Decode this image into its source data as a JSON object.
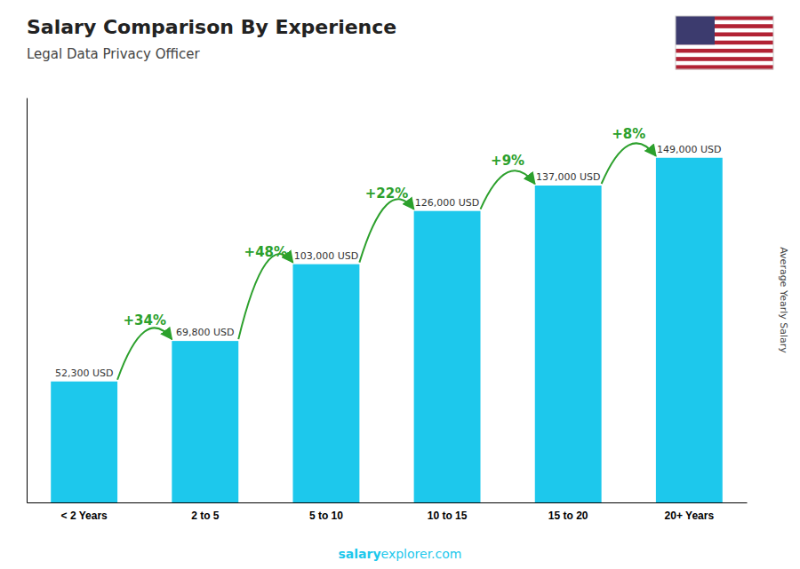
{
  "chart_data": {
    "type": "bar",
    "title": "Salary Comparison By Experience",
    "subtitle": "Legal Data Privacy Officer",
    "categories": [
      "< 2 Years",
      "2 to 5",
      "5 to 10",
      "10 to 15",
      "15 to 20",
      "20+ Years"
    ],
    "values": [
      52300,
      69800,
      103000,
      126000,
      137000,
      149000
    ],
    "value_labels": [
      "52,300 USD",
      "69,800 USD",
      "103,000 USD",
      "126,000 USD",
      "137,000 USD",
      "149,000 USD"
    ],
    "data_labels": true,
    "annotations": [
      "+34%",
      "+48%",
      "+22%",
      "+9%",
      "+8%"
    ],
    "color": "#1DC8EC",
    "ylabel": "Average Yearly Salary",
    "footer": [
      "salary",
      "explorer.com"
    ],
    "ylim": [
      0,
      175000
    ],
    "tick_labels": "x",
    "grid": false
  }
}
